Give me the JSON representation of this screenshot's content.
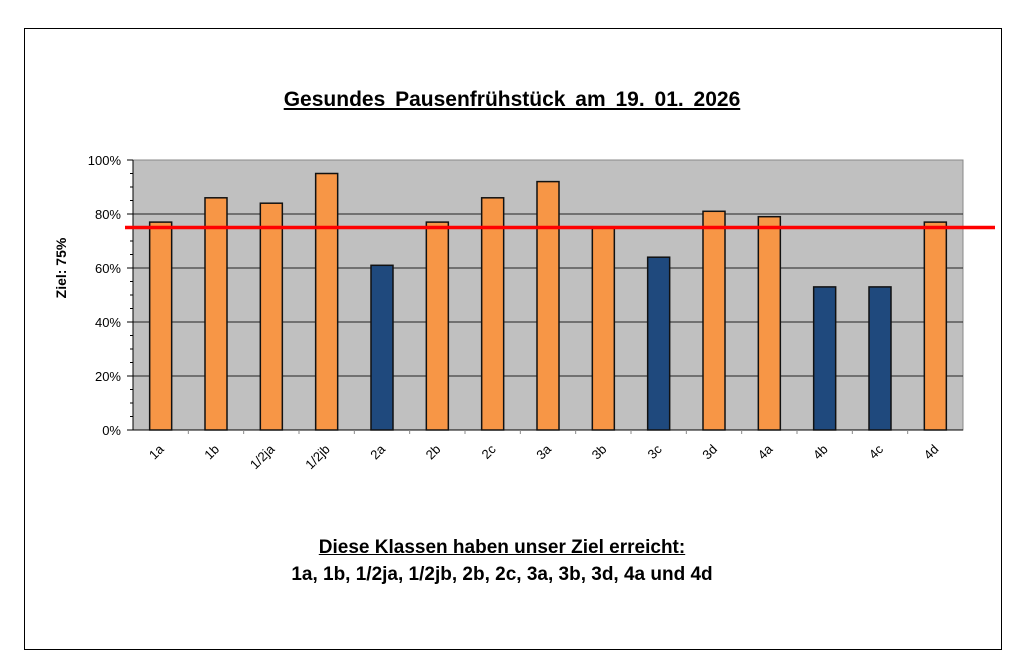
{
  "chart_data": {
    "type": "bar",
    "title": "Gesundes  Pausenfrühstück  am  19. 01. 2026",
    "xlabel": "",
    "ylabel": "Ziel: 75%",
    "ylim": [
      0,
      100
    ],
    "yticks": [
      "0%",
      "20%",
      "40%",
      "60%",
      "80%",
      "100%"
    ],
    "categories": [
      "1a",
      "1b",
      "1/2ja",
      "1/2jb",
      "2a",
      "2b",
      "2c",
      "3a",
      "3b",
      "3c",
      "3d",
      "4a",
      "4b",
      "4c",
      "4d"
    ],
    "values": [
      77,
      86,
      84,
      95,
      61,
      77,
      86,
      92,
      75,
      64,
      81,
      79,
      53,
      53,
      77
    ],
    "target": 75,
    "grid": true,
    "colors": {
      "reached": "#F79646",
      "not_reached": "#1F497D",
      "target_line": "#FF0000",
      "plot_bg": "#C0C0C0"
    }
  },
  "footer": {
    "heading": "Diese Klassen haben unser Ziel erreicht:",
    "classes": "1a, 1b, 1/2ja, 1/2jb, 2b, 2c, 3a, 3b, 3d, 4a und 4d"
  }
}
